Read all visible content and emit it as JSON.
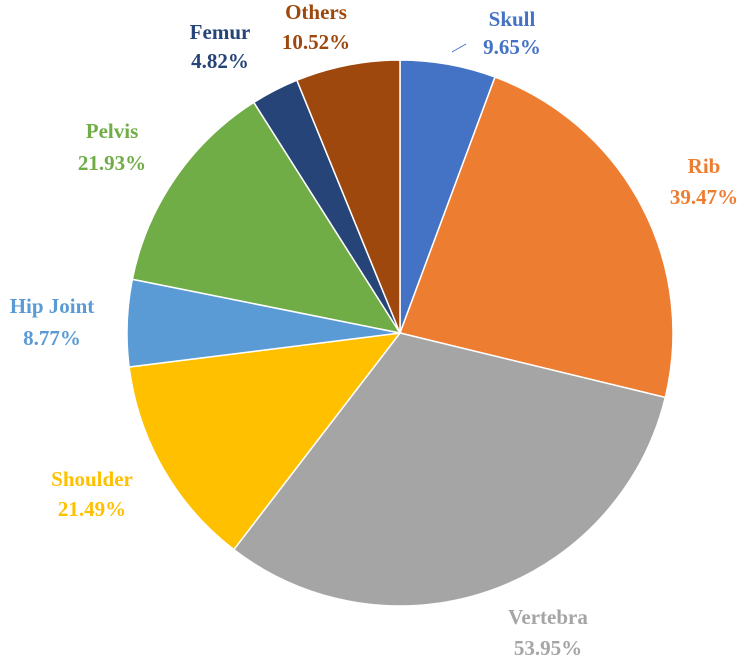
{
  "chart_data": {
    "type": "pie",
    "title": "",
    "start_angle_deg": 0,
    "direction": "clockwise",
    "slices": [
      {
        "name": "Skull",
        "percent_label": "9.65%",
        "value": 9.65,
        "color": "#4472C4"
      },
      {
        "name": "Rib",
        "percent_label": "39.47%",
        "value": 39.47,
        "color": "#ED7D31"
      },
      {
        "name": "Vertebra",
        "percent_label": "53.95%",
        "value": 53.95,
        "color": "#A5A5A5"
      },
      {
        "name": "Shoulder",
        "percent_label": "21.49%",
        "value": 21.49,
        "color": "#FFC000"
      },
      {
        "name": "Hip Joint",
        "percent_label": "8.77%",
        "value": 8.77,
        "color": "#5B9BD5"
      },
      {
        "name": "Pelvis",
        "percent_label": "21.93%",
        "value": 21.93,
        "color": "#70AD47"
      },
      {
        "name": "Femur",
        "percent_label": "4.82%",
        "value": 4.82,
        "color": "#264478"
      },
      {
        "name": "Others",
        "percent_label": "10.52%",
        "value": 10.52,
        "color": "#9E480E"
      }
    ],
    "legend": "none"
  }
}
